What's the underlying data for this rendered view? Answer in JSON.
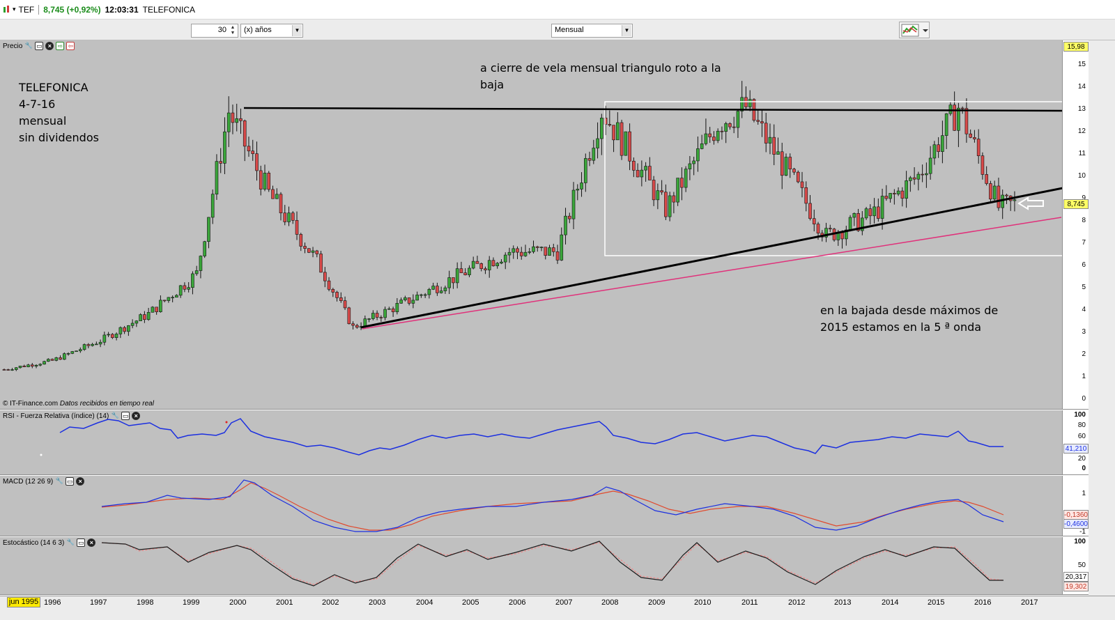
{
  "window": {
    "symbol": "TEF",
    "price_change": "8,745 (+0,92%)",
    "time": "12:03:31",
    "name": "TELEFONICA"
  },
  "toolbar": {
    "years_value": "30",
    "years_unit": "(x) años",
    "period": "Mensual"
  },
  "price_panel": {
    "label": "Precio",
    "axis_ticks": [
      "15",
      "14",
      "13",
      "12",
      "11",
      "10",
      "9",
      "8",
      "7",
      "6",
      "5",
      "4",
      "3",
      "2",
      "1",
      "0"
    ],
    "top_tag": "15,98",
    "last_tag": "8,745",
    "copyright": "© IT-Finance.com",
    "copyright_note": "Datos recibidos en tiempo real",
    "annotations": {
      "title_lines": [
        "TELEFONICA",
        "4-7-16",
        "mensual",
        "sin dividendos"
      ],
      "top_note_1": "a cierre de vela mensual triangulo roto a la",
      "top_note_2": "baja",
      "bottom_note_1": "en la bajada desde máximos de",
      "bottom_note_2": "2015 estamos en la  5 ª onda"
    }
  },
  "rsi_panel": {
    "label": "RSI - Fuerza Relativa (índice) (14)",
    "axis_ticks": [
      "100",
      "80",
      "60",
      "40",
      "20",
      "0"
    ],
    "tag": "41,210"
  },
  "macd_panel": {
    "label": "MACD (12 26 9)",
    "axis_ticks": [
      "1",
      "-1"
    ],
    "tag1": "-0,1360",
    "tag2": "-0,4600"
  },
  "stoch_panel": {
    "label": "Estocástico (14 6 3)",
    "axis_ticks": [
      "100",
      "50"
    ],
    "tag1": "20,317",
    "tag2": "19,302"
  },
  "time_axis": {
    "start": "jun 1995",
    "years": [
      "1996",
      "1997",
      "1998",
      "1999",
      "2000",
      "2001",
      "2002",
      "2003",
      "2004",
      "2005",
      "2006",
      "2007",
      "2008",
      "2009",
      "2010",
      "2011",
      "2012",
      "2013",
      "2014",
      "2015",
      "2016",
      "2017"
    ]
  },
  "colors": {
    "bull": "#3aa63a",
    "bear": "#d94a4a",
    "trendline": "#000000",
    "pink_line": "#e0307a",
    "rsi": "#1b2fe0",
    "macd_signal": "#e04a2e",
    "stoch_k": "#1b1b1b"
  },
  "chart_data": {
    "type": "candlestick",
    "x_range": [
      "1995-06",
      "2017-06"
    ],
    "ylim": [
      0,
      16
    ],
    "series": [
      {
        "name": "close",
        "x": [
          "1995-06",
          "1996-06",
          "1997-06",
          "1998-06",
          "1999-06",
          "2000-02",
          "2000-12",
          "2001-12",
          "2002-09",
          "2003-12",
          "2004-12",
          "2005-12",
          "2006-12",
          "2007-11",
          "2009-03",
          "2010-04",
          "2010-11",
          "2011-12",
          "2012-07",
          "2013-06",
          "2014-06",
          "2015-04",
          "2016-02",
          "2016-06"
        ],
        "values": [
          1.3,
          1.7,
          2.6,
          3.8,
          5.6,
          12.9,
          9.2,
          6.2,
          3.2,
          4.5,
          5.6,
          6.6,
          6.6,
          13.0,
          8.5,
          12.4,
          13.1,
          9.4,
          7.3,
          8.2,
          10.0,
          13.1,
          8.6,
          8.745
        ]
      }
    ]
  }
}
